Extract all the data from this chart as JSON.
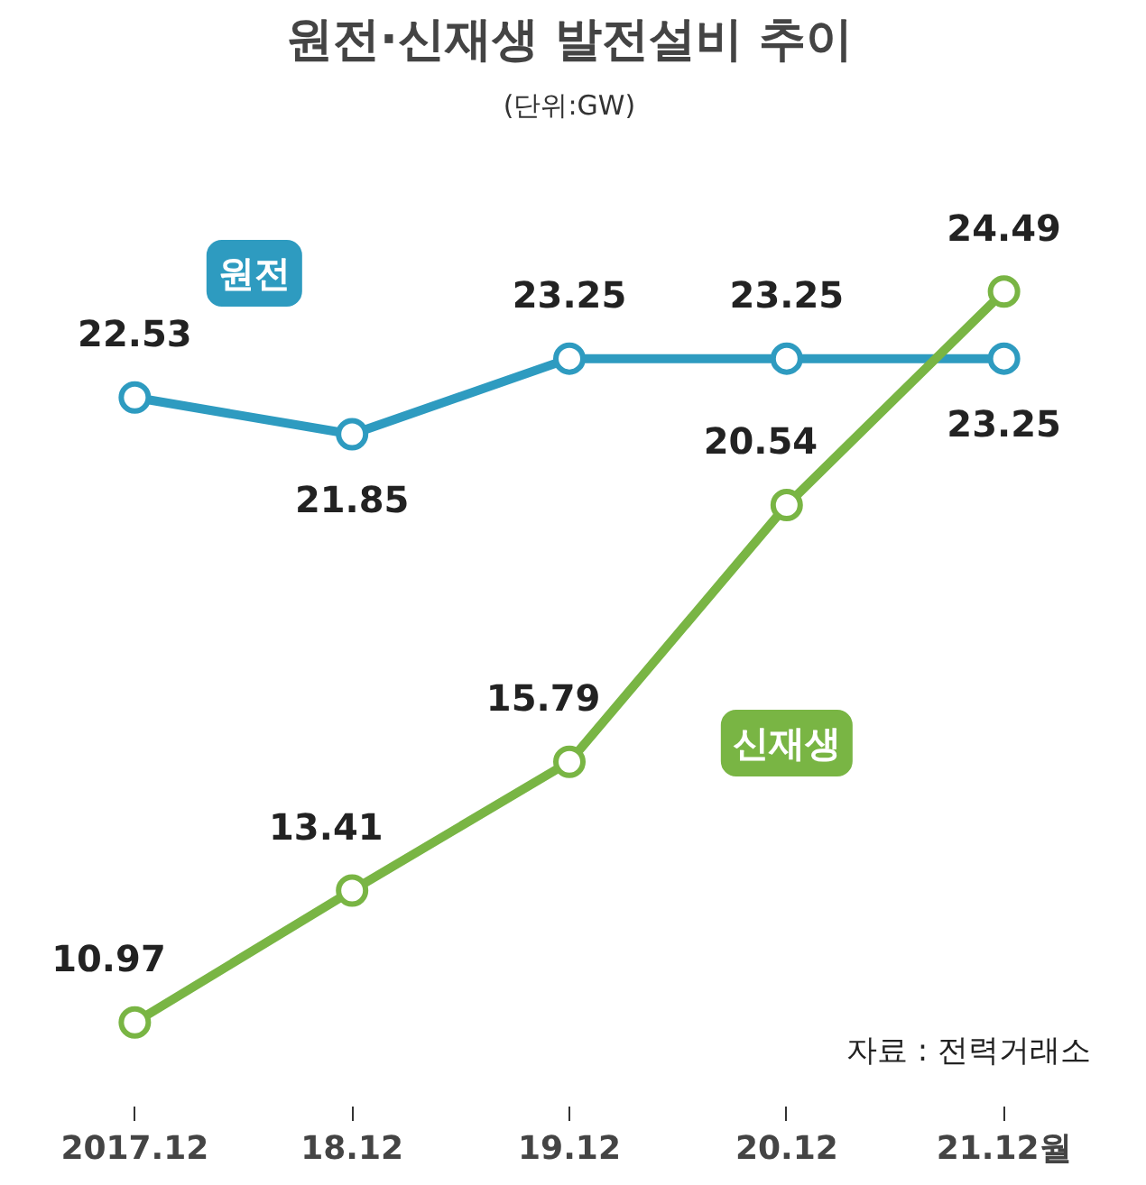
{
  "chart_data": {
    "type": "line",
    "title": "원전·신재생 발전설비 추이",
    "subtitle": "(단위:GW)",
    "categories": [
      "2017.12",
      "18.12",
      "19.12",
      "20.12",
      "21.12월"
    ],
    "series": [
      {
        "name": "원전",
        "color": "#2e9bc0",
        "values": [
          22.53,
          21.85,
          23.25,
          23.25,
          23.25
        ]
      },
      {
        "name": "신재생",
        "color": "#79b544",
        "values": [
          10.97,
          13.41,
          15.79,
          20.54,
          24.49
        ]
      }
    ],
    "data_labels": true,
    "marker": "circle",
    "line_style": "solid",
    "grid": false,
    "legend": false,
    "annotations": [
      "자료 : 전력거래소"
    ]
  }
}
